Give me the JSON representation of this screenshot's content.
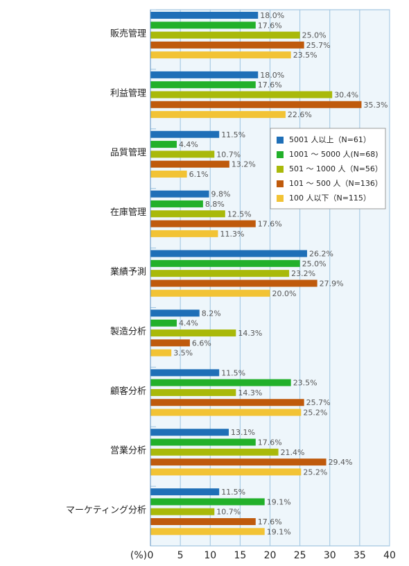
{
  "chart_data": {
    "type": "bar",
    "orientation": "horizontal",
    "x_label": "(%)",
    "categories": [
      "販売管理",
      "利益管理",
      "品質管理",
      "在庫管理",
      "業績予測",
      "製造分析",
      "顧客分析",
      "営業分析",
      "マーケティング分析"
    ],
    "series": [
      {
        "name": "5001 人以上（N=61）",
        "color": "#1f6fb7",
        "values": [
          18,
          18,
          11.5,
          9.8,
          26.2,
          8.2,
          11.5,
          13.1,
          11.5
        ],
        "value_labels": [
          "18.0%",
          "18.0%",
          "11.5%",
          "9.8%",
          "26.2%",
          "8.2%",
          "11.5%",
          "13.1%",
          "11.5%"
        ]
      },
      {
        "name": "1001 ～ 5000 人(N=68)",
        "color": "#22b02a",
        "values": [
          17.6,
          17.6,
          4.4,
          8.8,
          25,
          4.4,
          23.5,
          17.6,
          19.1
        ],
        "value_labels": [
          "17.6%",
          "17.6%",
          "4.4%",
          "8.8%",
          "25.0%",
          "4.4%",
          "23.5%",
          "17.6%",
          "19.1%"
        ]
      },
      {
        "name": "501 ～ 1000 人（N=56）",
        "color": "#a9b90a",
        "values": [
          25,
          30.4,
          10.7,
          12.5,
          23.2,
          14.3,
          14.3,
          21.4,
          10.7
        ],
        "value_labels": [
          "25.0%",
          "30.4%",
          "10.7%",
          "12.5%",
          "23.2%",
          "14.3%",
          "14.3%",
          "21.4%",
          "10.7%"
        ]
      },
      {
        "name": "101 ～ 500 人（N=136）",
        "color": "#bf5a0c",
        "values": [
          25.7,
          35.3,
          13.2,
          17.6,
          27.9,
          6.6,
          25.7,
          29.4,
          17.6
        ],
        "value_labels": [
          "25.7%",
          "35.3%",
          "13.2%",
          "17.6%",
          "27.9%",
          "6.6%",
          "25.7%",
          "29.4%",
          "17.6%"
        ]
      },
      {
        "name": "100 人以下（N=115）",
        "color": "#f2c335",
        "values": [
          23.5,
          22.6,
          6.1,
          11.3,
          20,
          3.5,
          25.2,
          25.2,
          19.1
        ],
        "value_labels": [
          "23.5%",
          "22.6%",
          "6.1%",
          "11.3%",
          "20.0%",
          "3.5%",
          "25.2%",
          "25.2%",
          "19.1%"
        ]
      }
    ],
    "xlim": [
      0,
      40
    ],
    "xticks": [
      0,
      5,
      10,
      15,
      20,
      25,
      30,
      35,
      40
    ],
    "grid": true
  }
}
